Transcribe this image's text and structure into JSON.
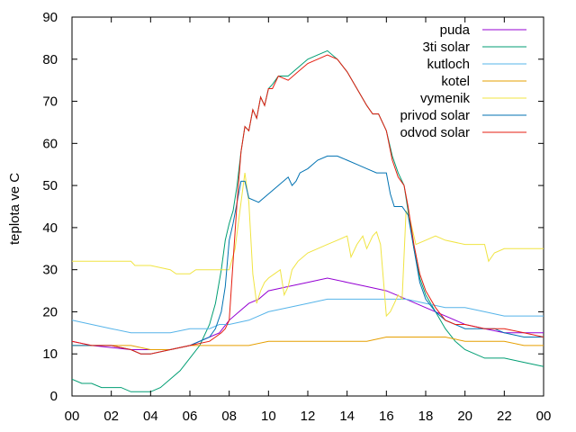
{
  "chart_data": {
    "type": "line",
    "title": "",
    "xlabel": "",
    "ylabel": "teplota ve C",
    "xlim": [
      0,
      24
    ],
    "ylim": [
      0,
      90
    ],
    "grid": false,
    "legend_position": "top-right",
    "x_tick_labels": [
      "00",
      "02",
      "04",
      "06",
      "08",
      "10",
      "12",
      "14",
      "16",
      "18",
      "20",
      "22",
      "00"
    ],
    "y_ticks": [
      0,
      10,
      20,
      30,
      40,
      50,
      60,
      70,
      80,
      90
    ],
    "series": [
      {
        "name": "puda",
        "color": "#9400d3",
        "x": [
          0,
          1,
          3,
          4,
          5,
          6,
          7,
          7.5,
          8,
          8.5,
          9,
          9.5,
          10,
          11,
          12,
          13,
          14,
          15,
          16,
          16.5,
          17,
          18,
          19,
          20,
          21,
          22,
          23,
          24
        ],
        "y": [
          13,
          12,
          11,
          11,
          11,
          12,
          14,
          15,
          18,
          20,
          22,
          23,
          25,
          26,
          27,
          28,
          27,
          26,
          25,
          24,
          23,
          21,
          19,
          17,
          16,
          15,
          15,
          15
        ]
      },
      {
        "name": "3ti solar",
        "color": "#009e73",
        "x": [
          0,
          0.5,
          1,
          1.5,
          2,
          2.5,
          3,
          3.5,
          4,
          4.5,
          5,
          5.5,
          6,
          6.5,
          7,
          7.3,
          7.6,
          7.8,
          8,
          8.2,
          8.4,
          8.6,
          8.8,
          9,
          9.2,
          9.4,
          9.6,
          9.8,
          10,
          10.2,
          10.5,
          11,
          11.5,
          12,
          12.5,
          13,
          13.5,
          14,
          14.5,
          15,
          15.3,
          15.6,
          16,
          16.3,
          16.6,
          16.9,
          17.1,
          17.4,
          17.7,
          18,
          18.5,
          19,
          19.5,
          20,
          20.5,
          21,
          21.5,
          22,
          23,
          24
        ],
        "y": [
          4,
          3,
          3,
          2,
          2,
          2,
          1,
          1,
          1,
          2,
          4,
          6,
          9,
          12,
          17,
          22,
          30,
          37,
          41,
          44,
          50,
          58,
          64,
          63,
          68,
          66,
          71,
          69,
          73,
          74,
          76,
          76,
          78,
          80,
          81,
          82,
          80,
          77,
          73,
          69,
          67,
          67,
          63,
          57,
          53,
          50,
          44,
          35,
          28,
          24,
          20,
          16,
          13,
          11,
          10,
          9,
          9,
          9,
          8,
          7
        ]
      },
      {
        "name": "kutloch",
        "color": "#56b4e9",
        "x": [
          0,
          1,
          2,
          3,
          4,
          5,
          6,
          7,
          7.5,
          8,
          9,
          10,
          11,
          12,
          13,
          14,
          15,
          16,
          17,
          18,
          19,
          20,
          21,
          22,
          23,
          24
        ],
        "y": [
          18,
          17,
          16,
          15,
          15,
          15,
          16,
          16,
          17,
          17,
          18,
          20,
          21,
          22,
          23,
          23,
          23,
          23,
          23,
          22,
          21,
          21,
          20,
          19,
          19,
          19
        ]
      },
      {
        "name": "kotel",
        "color": "#e69f00",
        "x": [
          0,
          1,
          2,
          3,
          4,
          5,
          6,
          7,
          8,
          9,
          10,
          11,
          12,
          13,
          14,
          15,
          16,
          17,
          18,
          19,
          20,
          21,
          22,
          23,
          24
        ],
        "y": [
          12,
          12,
          12,
          12,
          11,
          11,
          12,
          12,
          12,
          12,
          13,
          13,
          13,
          13,
          13,
          13,
          14,
          14,
          14,
          14,
          13,
          13,
          13,
          12,
          12
        ]
      },
      {
        "name": "vymenik",
        "color": "#f0e442",
        "x": [
          0,
          1,
          2,
          3,
          3.2,
          4,
          5,
          5.3,
          6,
          6.3,
          7,
          7.5,
          8,
          8.3,
          8.6,
          8.8,
          9,
          9.2,
          9.4,
          9.6,
          9.8,
          10,
          10.3,
          10.6,
          10.8,
          11,
          11.2,
          11.5,
          12,
          12.5,
          13,
          13.5,
          14,
          14.2,
          14.5,
          14.8,
          15,
          15.3,
          15.5,
          15.7,
          16,
          16.2,
          16.4,
          16.6,
          16.8,
          17,
          17.2,
          17.5,
          18,
          18.5,
          19,
          20,
          21,
          21.2,
          21.5,
          22,
          23,
          24
        ],
        "y": [
          32,
          32,
          32,
          32,
          31,
          31,
          30,
          29,
          29,
          30,
          30,
          30,
          30,
          35,
          46,
          53,
          46,
          29,
          22,
          25,
          27,
          28,
          29,
          30,
          24,
          26,
          30,
          32,
          34,
          35,
          36,
          37,
          38,
          33,
          36,
          38,
          35,
          38,
          39,
          36,
          19,
          20,
          22,
          24,
          23,
          44,
          42,
          36,
          37,
          38,
          37,
          36,
          36,
          32,
          34,
          35,
          35,
          35
        ]
      },
      {
        "name": "privod solar",
        "color": "#0072b2",
        "x": [
          0,
          1,
          2,
          3,
          3.5,
          4,
          5,
          6,
          7,
          7.3,
          7.6,
          7.8,
          8,
          8.2,
          8.4,
          8.6,
          8.8,
          9,
          9.5,
          10,
          10.5,
          11,
          11.2,
          11.4,
          11.6,
          12,
          12.5,
          13,
          13.5,
          14,
          14.5,
          15,
          15.5,
          16,
          16.2,
          16.4,
          16.8,
          17.1,
          17.4,
          17.7,
          18,
          18.5,
          19,
          19.5,
          20,
          20.5,
          21,
          21.5,
          22,
          23,
          24
        ],
        "y": [
          12,
          12,
          12,
          11,
          10,
          10,
          11,
          12,
          14,
          16,
          20,
          26,
          37,
          41,
          46,
          51,
          51,
          47,
          46,
          48,
          50,
          52,
          50,
          51,
          53,
          54,
          56,
          57,
          57,
          56,
          55,
          54,
          53,
          53,
          48,
          45,
          45,
          43,
          35,
          27,
          23,
          20,
          18,
          17,
          16,
          16,
          16,
          16,
          15,
          14,
          14
        ]
      },
      {
        "name": "odvod solar",
        "color": "#e51e10",
        "x": [
          0,
          1,
          2,
          3,
          3.5,
          4,
          5,
          6,
          7,
          7.3,
          7.6,
          7.8,
          8,
          8.2,
          8.4,
          8.6,
          8.8,
          9,
          9.2,
          9.4,
          9.6,
          9.8,
          10,
          10.2,
          10.5,
          11,
          11.5,
          12,
          12.5,
          13,
          13.5,
          14,
          14.5,
          15,
          15.3,
          15.6,
          16,
          16.3,
          16.6,
          16.9,
          17.1,
          17.4,
          17.7,
          18,
          18.5,
          19,
          19.5,
          20,
          21,
          22,
          23,
          24
        ],
        "y": [
          13,
          12,
          12,
          11,
          10,
          10,
          11,
          12,
          13,
          14,
          15,
          16,
          18,
          32,
          46,
          58,
          64,
          63,
          68,
          66,
          71,
          69,
          73,
          73,
          76,
          75,
          77,
          79,
          80,
          81,
          80,
          77,
          73,
          69,
          67,
          67,
          63,
          56,
          52,
          50,
          45,
          36,
          29,
          25,
          21,
          18,
          17,
          17,
          16,
          16,
          15,
          14
        ]
      }
    ]
  }
}
